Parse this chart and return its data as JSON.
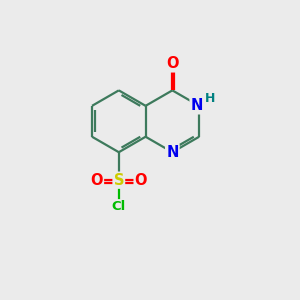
{
  "background_color": "#ebebeb",
  "bond_color": "#3d7a5c",
  "bond_width": 1.6,
  "atom_colors": {
    "O": "#ff0000",
    "N": "#0000ee",
    "S": "#cccc00",
    "Cl": "#00bb00",
    "H": "#008080",
    "C": "#3d7a5c"
  },
  "font_size": 9.5,
  "fig_size": [
    3.0,
    3.0
  ],
  "dpi": 100
}
